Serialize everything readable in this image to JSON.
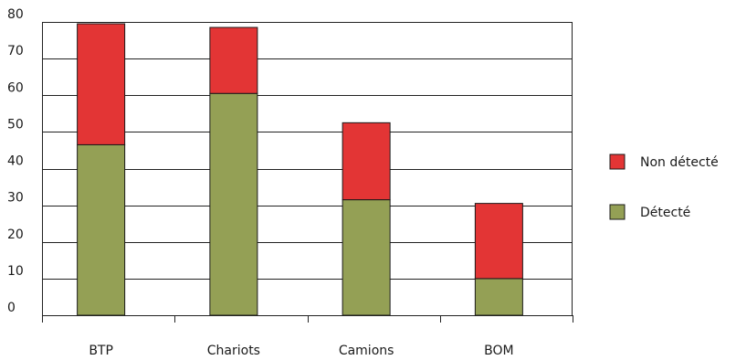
{
  "chart_data": {
    "type": "bar",
    "stacked": true,
    "categories": [
      "BTP",
      "Chariots",
      "Camions",
      "BOM"
    ],
    "series": [
      {
        "name": "Détecté",
        "values": [
          46.5,
          60.5,
          31.5,
          10
        ],
        "color": "#94a055"
      },
      {
        "name": "Non détecté",
        "values": [
          33,
          18,
          21,
          20.5
        ],
        "color": "#e33535"
      }
    ],
    "title": "",
    "xlabel": "",
    "ylabel": "",
    "ylim": [
      0,
      80
    ],
    "yticks": [
      0,
      10,
      20,
      30,
      40,
      50,
      60,
      70,
      80
    ],
    "grid": true,
    "legend_position": "right",
    "legend_order": [
      "Non détecté",
      "Détecté"
    ]
  }
}
